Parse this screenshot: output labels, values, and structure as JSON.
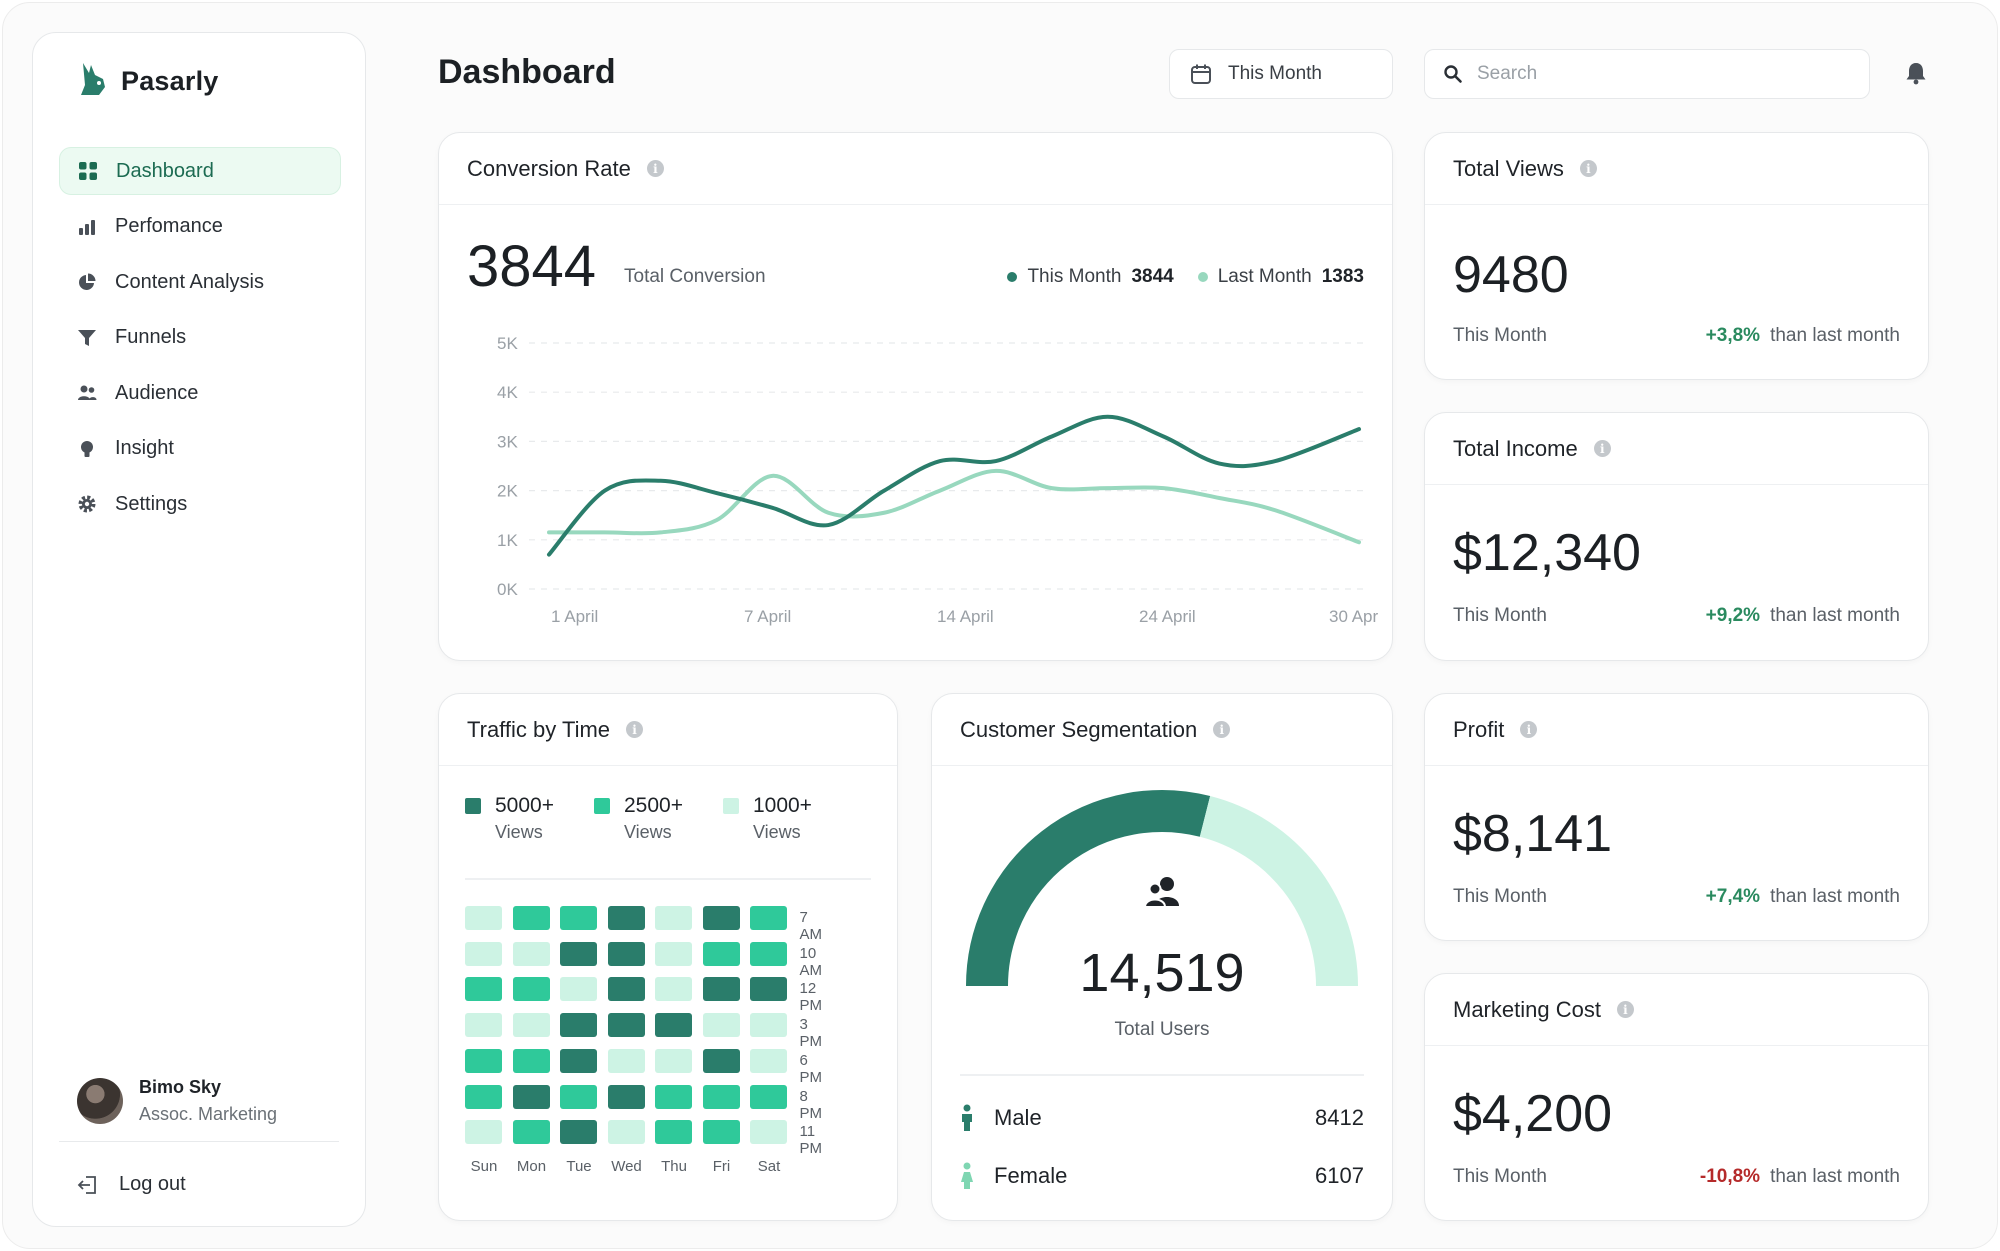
{
  "brand": {
    "name": "Pasarly"
  },
  "nav": [
    {
      "label": "Dashboard",
      "icon": "grid-icon",
      "active": true
    },
    {
      "label": "Perfomance",
      "icon": "bar-chart-icon"
    },
    {
      "label": "Content Analysis",
      "icon": "pie-chart-icon"
    },
    {
      "label": "Funnels",
      "icon": "funnel-icon"
    },
    {
      "label": "Audience",
      "icon": "users-icon"
    },
    {
      "label": "Insight",
      "icon": "lightbulb-icon"
    },
    {
      "label": "Settings",
      "icon": "gear-icon"
    }
  ],
  "user": {
    "name": "Bimo Sky",
    "role": "Assoc. Marketing"
  },
  "logout_label": "Log out",
  "header": {
    "title": "Dashboard",
    "period": "This Month",
    "search_placeholder": "Search"
  },
  "colors": {
    "dark_green": "#2a7d6b",
    "mid_green": "#2fc99a",
    "light_green": "#cdf3e4",
    "accent_bg": "#ecfaf2"
  },
  "conversion": {
    "title": "Conversion Rate",
    "total": "3844",
    "total_label": "Total Conversion",
    "legend": [
      {
        "label": "This Month",
        "value": "3844",
        "color": "#2a7d6b"
      },
      {
        "label": "Last Month",
        "value": "1383",
        "color": "#98d8be"
      }
    ]
  },
  "chart_data": {
    "type": "line",
    "title": "Conversion Rate",
    "x_tick_labels": [
      "1 April",
      "7 April",
      "14 April",
      "24 April",
      "30 April"
    ],
    "y_tick_labels": [
      "0K",
      "1K",
      "2K",
      "3K",
      "4K",
      "5K"
    ],
    "ylim": [
      0,
      5000
    ],
    "grid": true,
    "x": [
      1,
      3,
      5,
      7,
      9,
      11,
      13,
      15,
      17,
      19,
      21,
      23,
      25,
      27,
      30
    ],
    "series": [
      {
        "name": "This Month",
        "color": "#2a7d6b",
        "values": [
          700,
          2000,
          2200,
          1950,
          1650,
          1300,
          2000,
          2600,
          2600,
          3100,
          3500,
          3100,
          2550,
          2600,
          3250
        ]
      },
      {
        "name": "Last Month",
        "color": "#98d8be",
        "values": [
          1150,
          1150,
          1150,
          1400,
          2300,
          1550,
          1550,
          2000,
          2400,
          2050,
          2050,
          2050,
          1850,
          1600,
          950
        ]
      }
    ]
  },
  "stats": {
    "views": {
      "title": "Total Views",
      "value": "9480",
      "label": "This Month",
      "change": "+3,8%",
      "suffix": "than last month"
    },
    "income": {
      "title": "Total Income",
      "value": "$12,340",
      "label": "This Month",
      "change": "+9,2%",
      "suffix": "than last month"
    },
    "profit": {
      "title": "Profit",
      "value": "$8,141",
      "label": "This Month",
      "change": "+7,4%",
      "suffix": "than last month"
    },
    "cost": {
      "title": "Marketing Cost",
      "value": "$4,200",
      "label": "This Month",
      "change": "-10,8%",
      "suffix": "than last month"
    }
  },
  "traffic": {
    "title": "Traffic by Time",
    "legend": [
      {
        "value": "5000+",
        "label": "Views",
        "color": "#2a7d6b"
      },
      {
        "value": "2500+",
        "label": "Views",
        "color": "#2fc99a"
      },
      {
        "value": "1000+",
        "label": "Views",
        "color": "#cdf3e4"
      }
    ],
    "days": [
      "Sun",
      "Mon",
      "Tue",
      "Wed",
      "Thu",
      "Fri",
      "Sat"
    ],
    "times": [
      "7 AM",
      "10 AM",
      "12 PM",
      "3 PM",
      "6 PM",
      "8 PM",
      "11 PM"
    ],
    "levels": [
      [
        1,
        2,
        2,
        3,
        1,
        3,
        2
      ],
      [
        1,
        1,
        3,
        3,
        1,
        2,
        2
      ],
      [
        2,
        2,
        1,
        3,
        1,
        3,
        3
      ],
      [
        1,
        1,
        3,
        3,
        3,
        1,
        1
      ],
      [
        2,
        2,
        3,
        1,
        1,
        3,
        1
      ],
      [
        2,
        3,
        2,
        3,
        2,
        2,
        2
      ],
      [
        1,
        2,
        3,
        1,
        2,
        2,
        1
      ]
    ]
  },
  "segmentation": {
    "title": "Customer Segmentation",
    "total": "14,519",
    "total_label": "Total Users",
    "groups": [
      {
        "label": "Male",
        "value": "8412",
        "color": "#2a7d6b"
      },
      {
        "label": "Female",
        "value": "6107",
        "color": "#7fd6b2"
      }
    ],
    "male_share": 0.579
  }
}
